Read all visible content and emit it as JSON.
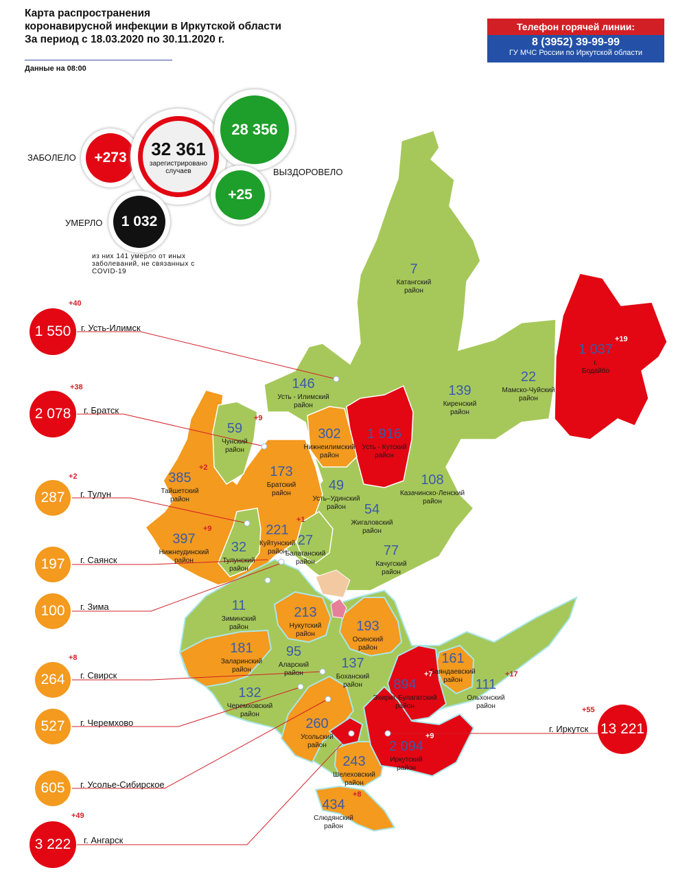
{
  "header": {
    "title_lines": [
      "Карта распространения",
      "коронавирусной инфекции в Иркутской области",
      "За период с 18.03.2020 по 30.11.2020 г."
    ],
    "as_of": "Данные на 08:00"
  },
  "hotline": {
    "title": "Телефон горячей линии:",
    "phone": "8 (3952) 39-99-99",
    "org": "ГУ МЧС России по Иркутской области"
  },
  "stats": {
    "total": "32 361",
    "total_label": "зарегистрировано случаев",
    "new_cases": "+273",
    "new_cases_label": "ЗАБОЛЕЛО",
    "recovered": "28 356",
    "recovered_new": "+25",
    "recovered_label": "ВЫЗДОРОВЕЛО",
    "deaths": "1 032",
    "deaths_label": "УМЕРЛО",
    "note": "из них 141 умерло от иных заболеваний, не связанных с COVID-19"
  },
  "colors": {
    "red": "#e30613",
    "orange": "#f39a1f",
    "green": "#a6c85a",
    "black": "#111111",
    "dark_green": "#1e9e2a"
  },
  "cities": [
    {
      "name": "г. Усть-Илимск",
      "value": "1 550",
      "delta": "+40",
      "color": "red"
    },
    {
      "name": "г. Братск",
      "value": "2 078",
      "delta": "+38",
      "color": "red"
    },
    {
      "name": "г. Тулун",
      "value": "287",
      "delta": "+2",
      "color": "orange"
    },
    {
      "name": "г. Саянск",
      "value": "197",
      "delta": "",
      "color": "orange"
    },
    {
      "name": "г. Зима",
      "value": "100",
      "delta": "",
      "color": "orange"
    },
    {
      "name": "г. Свирск",
      "value": "264",
      "delta": "+8",
      "color": "orange"
    },
    {
      "name": "г. Черемхово",
      "value": "527",
      "delta": "",
      "color": "orange"
    },
    {
      "name": "г. Усолье-Сибирское",
      "value": "605",
      "delta": "",
      "color": "orange"
    },
    {
      "name": "г. Ангарск",
      "value": "3 222",
      "delta": "+49",
      "color": "red"
    },
    {
      "name": "г. Иркутск",
      "value": "13 221",
      "delta": "+55",
      "color": "red"
    }
  ],
  "districts": [
    {
      "name": "Катангский район",
      "value": "7",
      "delta": ""
    },
    {
      "name": "г. Бодайбо",
      "value": "1 037",
      "delta": "+19"
    },
    {
      "name": "Мамско-Чуйский район",
      "value": "22",
      "delta": ""
    },
    {
      "name": "Киренский район",
      "value": "139",
      "delta": ""
    },
    {
      "name": "Усть - Илимский район",
      "value": "146",
      "delta": ""
    },
    {
      "name": "Усть - Кутский район",
      "value": "1 916",
      "delta": ""
    },
    {
      "name": "Нижнеилимский район",
      "value": "302",
      "delta": ""
    },
    {
      "name": "Чунский район",
      "value": "59",
      "delta": "+9"
    },
    {
      "name": "Тайшетский район",
      "value": "385",
      "delta": "+2"
    },
    {
      "name": "Братский район",
      "value": "173",
      "delta": ""
    },
    {
      "name": "Усть–Удинский район",
      "value": "49",
      "delta": ""
    },
    {
      "name": "Казачинско-Ленский район",
      "value": "108",
      "delta": ""
    },
    {
      "name": "Жигаловский район",
      "value": "54",
      "delta": ""
    },
    {
      "name": "Нижнеудинский район",
      "value": "397",
      "delta": "+9"
    },
    {
      "name": "Куйтунский район",
      "value": "221",
      "delta": "+1"
    },
    {
      "name": "Тулунский район",
      "value": "32",
      "delta": ""
    },
    {
      "name": "Балаганский район",
      "value": "27",
      "delta": ""
    },
    {
      "name": "Качугский район",
      "value": "77",
      "delta": ""
    },
    {
      "name": "Зиминский район",
      "value": "11",
      "delta": ""
    },
    {
      "name": "Нукутский район",
      "value": "213",
      "delta": ""
    },
    {
      "name": "Осинский район",
      "value": "193",
      "delta": ""
    },
    {
      "name": "Заларинский район",
      "value": "181",
      "delta": ""
    },
    {
      "name": "Аларский район",
      "value": "95",
      "delta": ""
    },
    {
      "name": "Боханский район",
      "value": "137",
      "delta": ""
    },
    {
      "name": "Баяндаевский район",
      "value": "161",
      "delta": ""
    },
    {
      "name": "Эхирит-Булагатский район",
      "value": "894",
      "delta": "+7"
    },
    {
      "name": "Ольхонский район",
      "value": "111",
      "delta": "+17"
    },
    {
      "name": "Черемховский район",
      "value": "132",
      "delta": ""
    },
    {
      "name": "Усольский район",
      "value": "260",
      "delta": ""
    },
    {
      "name": "Иркутский район",
      "value": "2 094",
      "delta": "+9"
    },
    {
      "name": "Шелеховский район",
      "value": "243",
      "delta": ""
    },
    {
      "name": "Слюдянский район",
      "value": "434",
      "delta": "+8"
    }
  ]
}
